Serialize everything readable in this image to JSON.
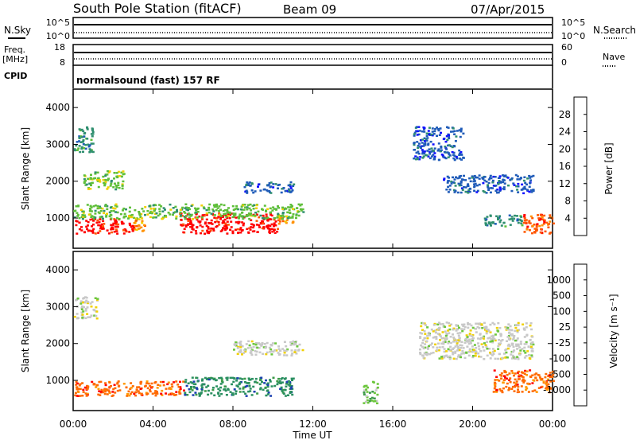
{
  "header": {
    "station": "South Pole Station (fitACF)",
    "beam": "Beam 09",
    "date": "07/Apr/2015"
  },
  "top_panels": {
    "nsky_label": "N.Sky",
    "nsearch_label": "N.Search",
    "noise_ticks": [
      "10^5",
      "10^0"
    ],
    "freq_label": "Freq.",
    "freq_unit": "[MHz]",
    "freq_ticks": [
      "18",
      "8"
    ],
    "nave_label": "Nave",
    "nave_ticks": [
      "60",
      "0"
    ],
    "cpid_label": "CPID",
    "cpid_text": "normalsound (fast) 157 RF"
  },
  "chart_data": [
    {
      "type": "heatmap",
      "name": "power",
      "ylabel": "Slant Range [km]",
      "yticks": [
        "1000",
        "2000",
        "3000",
        "4000"
      ],
      "ylim": [
        180,
        4500
      ],
      "xlim_hours": [
        0,
        24
      ],
      "colorbar": {
        "label": "Power [dB]",
        "ticks": [
          "4",
          "8",
          "12",
          "16",
          "20",
          "24",
          "28"
        ],
        "colors": [
          "#1010ff",
          "#1f5bb8",
          "#2f8f6f",
          "#5fbf3a",
          "#f0d000",
          "#ff9000",
          "#ff5500",
          "#ff0000"
        ]
      },
      "regions": [
        {
          "t": [
            0.0,
            3.0
          ],
          "r": [
            600,
            1000
          ],
          "level": 7
        },
        {
          "t": [
            3.0,
            3.6
          ],
          "r": [
            600,
            1000
          ],
          "level": 5
        },
        {
          "t": [
            5.3,
            10.2
          ],
          "r": [
            600,
            1150
          ],
          "level": 7
        },
        {
          "t": [
            10.2,
            11.0
          ],
          "r": [
            850,
            1100
          ],
          "level": 5
        },
        {
          "t": [
            0.0,
            11.5
          ],
          "r": [
            1000,
            1400
          ],
          "level": 3
        },
        {
          "t": [
            0.0,
            1.0
          ],
          "r": [
            2800,
            3500
          ],
          "level": 2
        },
        {
          "t": [
            0.5,
            2.5
          ],
          "r": [
            1800,
            2300
          ],
          "level": 3
        },
        {
          "t": [
            8.5,
            11.0
          ],
          "r": [
            1700,
            2000
          ],
          "level": 1
        },
        {
          "t": [
            18.5,
            23.0
          ],
          "r": [
            1700,
            2200
          ],
          "level": 1
        },
        {
          "t": [
            17.0,
            19.5
          ],
          "r": [
            2600,
            3500
          ],
          "level": 1
        },
        {
          "t": [
            22.5,
            24.0
          ],
          "r": [
            600,
            1150
          ],
          "level": 6
        },
        {
          "t": [
            20.5,
            22.5
          ],
          "r": [
            800,
            1100
          ],
          "level": 2
        }
      ]
    },
    {
      "type": "heatmap",
      "name": "velocity",
      "ylabel": "Slant Range [km]",
      "yticks": [
        "1000",
        "2000",
        "3000",
        "4000"
      ],
      "ylim": [
        180,
        4500
      ],
      "xlim_hours": [
        0,
        24
      ],
      "xticks": [
        "00:00",
        "04:00",
        "08:00",
        "12:00",
        "16:00",
        "20:00",
        "00:00"
      ],
      "xlabel": "Time UT",
      "colorbar": {
        "label": "Velocity [m s⁻¹]",
        "ticks": [
          "1000",
          "500",
          "100",
          "25",
          "-25",
          "-100",
          "-500",
          "-1000"
        ],
        "colors": [
          "#1a3fb0",
          "#2a8f60",
          "#3c9a48",
          "#6cc63c",
          "#c8c8c8",
          "#f0d000",
          "#ff9a00",
          "#ff6a00",
          "#ff0000"
        ]
      },
      "regions": [
        {
          "t": [
            0.0,
            5.5
          ],
          "r": [
            600,
            1000
          ],
          "level": 7
        },
        {
          "t": [
            5.5,
            11.0
          ],
          "r": [
            600,
            1100
          ],
          "level": 1
        },
        {
          "t": [
            0.0,
            1.2
          ],
          "r": [
            2700,
            3300
          ],
          "level": 4
        },
        {
          "t": [
            8.0,
            11.5
          ],
          "r": [
            1700,
            2100
          ],
          "level": 4
        },
        {
          "t": [
            17.3,
            23.0
          ],
          "r": [
            1600,
            2600
          ],
          "level": 4
        },
        {
          "t": [
            21.0,
            24.0
          ],
          "r": [
            700,
            1300
          ],
          "level": 7
        },
        {
          "t": [
            14.5,
            15.2
          ],
          "r": [
            400,
            1000
          ],
          "level": 3
        }
      ]
    }
  ]
}
